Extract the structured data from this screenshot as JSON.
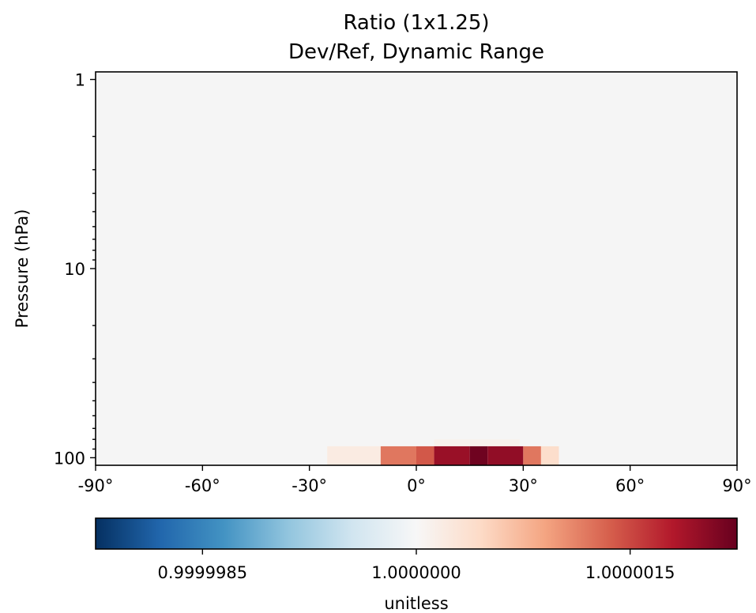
{
  "chart_data": {
    "type": "heatmap",
    "title": "Ratio (1x1.25)",
    "subtitle": "Dev/Ref, Dynamic Range",
    "xlabel": "",
    "ylabel": "Pressure (hPa)",
    "xlim": [
      -90,
      90
    ],
    "ylim": [
      1,
      100
    ],
    "yscale": "log",
    "yaxis_inverted": true,
    "x_ticks": [
      -90,
      -60,
      -30,
      0,
      30,
      60,
      90
    ],
    "x_tick_labels": [
      "-90°",
      "-60°",
      "-30°",
      "0°",
      "30°",
      "60°",
      "90°"
    ],
    "y_ticks": [
      1,
      10,
      100
    ],
    "y_tick_labels": [
      "1",
      "10",
      "100"
    ],
    "background_value": 1.0,
    "background_color": "#f5f5f5",
    "cells": [
      {
        "lat_range": [
          5,
          29
        ],
        "p_range": [
          80,
          87
        ],
        "value": 1.0000001
      },
      {
        "lat_range": [
          -25,
          -10
        ],
        "p_range": [
          87,
          100
        ],
        "value": 1.0000002
      },
      {
        "lat_range": [
          -10,
          0
        ],
        "p_range": [
          87,
          100
        ],
        "value": 1.0000012
      },
      {
        "lat_range": [
          0,
          5
        ],
        "p_range": [
          87,
          100
        ],
        "value": 1.0000014
      },
      {
        "lat_range": [
          5,
          15
        ],
        "p_range": [
          87,
          100
        ],
        "value": 1.00000195
      },
      {
        "lat_range": [
          15,
          20
        ],
        "p_range": [
          87,
          100
        ],
        "value": 1.0000022
      },
      {
        "lat_range": [
          20,
          30
        ],
        "p_range": [
          87,
          100
        ],
        "value": 1.000002
      },
      {
        "lat_range": [
          30,
          35
        ],
        "p_range": [
          87,
          100
        ],
        "value": 1.0000012
      },
      {
        "lat_range": [
          35,
          40
        ],
        "p_range": [
          87,
          100
        ],
        "value": 1.0000004
      }
    ],
    "colorbar": {
      "label": "unitless",
      "colormap": "RdBu_r",
      "vmin": 0.99999775,
      "vmax": 1.00000225,
      "ticks": [
        0.9999985,
        1.0,
        1.0000015
      ],
      "tick_labels": [
        "0.9999985",
        "1.0000000",
        "1.0000015"
      ],
      "colormap_stops": [
        "#053061",
        "#2166ac",
        "#4393c3",
        "#92c5de",
        "#d1e5f0",
        "#f7f7f7",
        "#fddbc7",
        "#f4a582",
        "#d6604d",
        "#b2182b",
        "#67001f"
      ]
    },
    "grid": false
  }
}
